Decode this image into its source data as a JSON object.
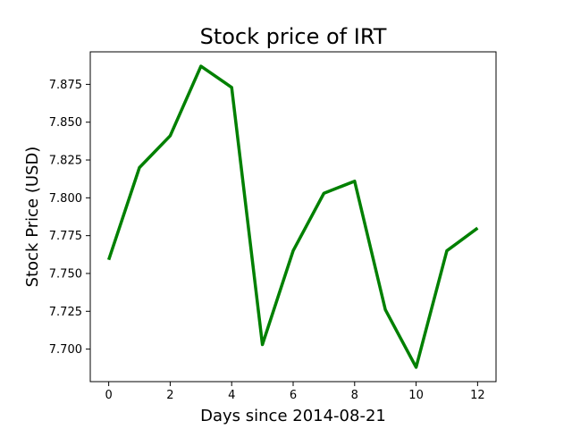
{
  "chart_data": {
    "type": "line",
    "title": "Stock price of IRT",
    "xlabel": "Days since 2014-08-21",
    "ylabel": "Stock Price (USD)",
    "x": [
      0,
      1,
      2,
      3,
      4,
      5,
      6,
      7,
      8,
      9,
      10,
      11,
      12
    ],
    "series": [
      {
        "values": [
          7.759,
          7.82,
          7.841,
          7.887,
          7.873,
          7.703,
          7.765,
          7.803,
          7.811,
          7.726,
          7.688,
          7.765,
          7.78
        ],
        "color": "#008000"
      }
    ],
    "xlim": [
      -0.6,
      12.6
    ],
    "ylim": [
      7.6785,
      7.8965
    ],
    "xticks": [
      0,
      2,
      4,
      6,
      8,
      10,
      12
    ],
    "yticks": [
      7.7,
      7.725,
      7.75,
      7.775,
      7.8,
      7.825,
      7.85,
      7.875
    ],
    "xtick_labels": [
      "0",
      "2",
      "4",
      "6",
      "8",
      "10",
      "12"
    ],
    "ytick_labels": [
      "7.700",
      "7.725",
      "7.750",
      "7.775",
      "7.800",
      "7.825",
      "7.850",
      "7.875"
    ],
    "grid": false,
    "legend": false
  }
}
